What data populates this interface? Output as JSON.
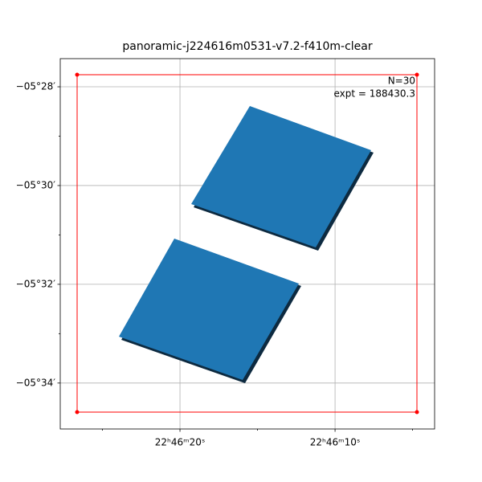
{
  "chart_data": {
    "type": "footprint",
    "title": "panoramic-j224616m0531-v7.2-f410m-clear",
    "annotations": [
      "N=30",
      "expt = 188430.3"
    ],
    "xlim": [
      341.6155,
      341.51492
    ],
    "ylim": [
      -5.58217,
      -5.45717
    ],
    "xticks": [
      {
        "value": 341.583333,
        "label": "22ʰ46ᵐ20ˢ"
      },
      {
        "value": 341.541667,
        "label": "22ʰ46ᵐ10ˢ"
      }
    ],
    "xminorticks": [
      341.604167,
      341.5625,
      341.520833
    ],
    "yticks": [
      {
        "value": -5.466667,
        "label": "−05°28′"
      },
      {
        "value": -5.5,
        "label": "−05°30′"
      },
      {
        "value": -5.533333,
        "label": "−05°32′"
      },
      {
        "value": -5.566667,
        "label": "−05°34′"
      }
    ],
    "yminorticks": [
      -5.483333,
      -5.516667,
      -5.55
    ],
    "grid": true
  }
}
